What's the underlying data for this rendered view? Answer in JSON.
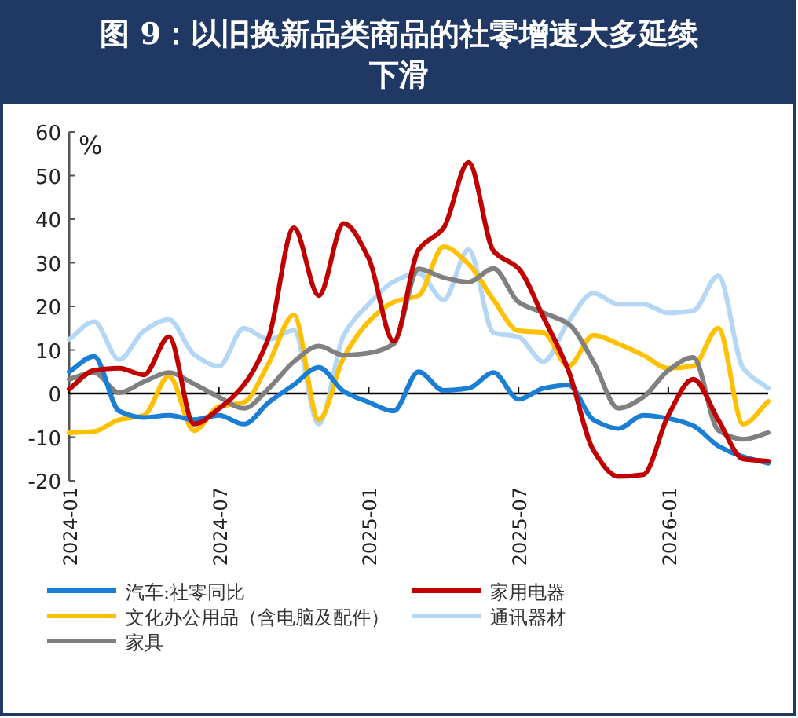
{
  "chart_data": {
    "type": "line",
    "title": "图 9：以旧换新品类商品的社零增速大多延续下滑",
    "ylabel": "%",
    "x": [
      "2024-01",
      "2024-02",
      "2024-03",
      "2024-04",
      "2024-05",
      "2024-06",
      "2024-07",
      "2024-08",
      "2024-09",
      "2024-10",
      "2024-11",
      "2024-12",
      "2025-01",
      "2025-02",
      "2025-03",
      "2025-04",
      "2025-05",
      "2025-06",
      "2025-07",
      "2025-08",
      "2025-09",
      "2025-10",
      "2025-11",
      "2025-12",
      "2026-01",
      "2026-02",
      "2026-03",
      "2026-04",
      "2026-05"
    ],
    "series": [
      {
        "name": "汽车:社零同比",
        "color": "#1a7fd4",
        "values": [
          5,
          8.5,
          -4,
          -5.5,
          -5,
          -6,
          -5,
          -7,
          -2,
          2,
          6,
          0.5,
          -2,
          -4,
          5,
          0.7,
          1.2,
          4.8,
          -1.3,
          1.2,
          2,
          -6,
          -8,
          -5,
          -5.7,
          -7.4,
          -12,
          -14.5,
          -16
        ]
      },
      {
        "name": "家用电器",
        "color": "#c00000",
        "values": [
          1,
          5.3,
          5.8,
          4.3,
          13,
          -7,
          -3.5,
          2,
          13,
          38,
          22.5,
          39,
          31,
          12,
          33,
          38,
          53,
          32.7,
          28.7,
          17.5,
          5.3,
          -13,
          -19,
          -18.6,
          -5,
          3.3,
          -6,
          -15,
          -15.5
        ]
      },
      {
        "name": "文化办公用品（含电脑及配件）",
        "color": "#ffc000",
        "values": [
          -9,
          -8.7,
          -6,
          -5,
          4,
          -8.5,
          -3,
          -2,
          7,
          18,
          -6,
          8.3,
          16.5,
          21,
          22.5,
          33.7,
          29.7,
          21.5,
          14.4,
          14,
          6.3,
          13.4,
          11.4,
          8.8,
          5.8,
          6.3,
          15,
          -7,
          -1.8
        ]
      },
      {
        "name": "通讯器材",
        "color": "#b4d7f5",
        "values": [
          12.4,
          16.5,
          7.8,
          14.4,
          17,
          9,
          6.3,
          15,
          12.4,
          14.5,
          -7,
          13.4,
          20.5,
          25.7,
          27.6,
          21.5,
          33,
          14,
          13,
          7.3,
          16.5,
          23,
          20.5,
          20.5,
          18.5,
          19,
          27,
          5.8,
          1.2
        ]
      },
      {
        "name": "家具",
        "color": "#808080",
        "values": [
          3.3,
          4.8,
          0.2,
          2.7,
          4.8,
          2.2,
          -0.8,
          -3.4,
          1.2,
          7.3,
          10.9,
          8.8,
          9.3,
          11.4,
          28.6,
          26.6,
          25.6,
          28.7,
          21,
          18.5,
          16,
          7.3,
          -3.4,
          -0.8,
          5.3,
          8.3,
          -8.4,
          -10.5,
          -9
        ]
      }
    ],
    "xlim": [
      "2024-01",
      "2026-05"
    ],
    "xticks": [
      "2024-01",
      "2024-07",
      "2025-01",
      "2025-07",
      "2026-01"
    ],
    "ylim": [
      -20,
      60
    ],
    "yticks": [
      -20,
      -10,
      0,
      10,
      20,
      30,
      40,
      50,
      60
    ],
    "ref_lines": [
      {
        "axis": "y",
        "value": 0,
        "color": "#000000",
        "line_style": "solid"
      }
    ],
    "grid": false,
    "legend": "bottom",
    "marker": "none",
    "line_style": "solid"
  }
}
